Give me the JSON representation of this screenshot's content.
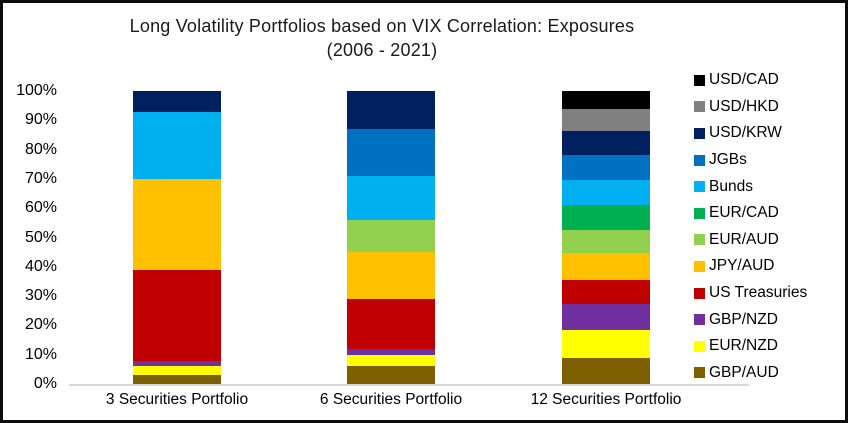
{
  "chart": {
    "title": "Long Volatility Portfolios based on VIX Correlation: Exposures",
    "subtitle": "(2006 - 2021)"
  },
  "chart_data": {
    "type": "bar",
    "stacked": true,
    "normalized_to_100_percent": true,
    "title": "Long Volatility Portfolios based on VIX Correlation: Exposures",
    "subtitle": "(2006 - 2021)",
    "xlabel": "",
    "ylabel": "",
    "ylim": [
      0,
      100
    ],
    "ytick_step": 10,
    "ytick_labels": [
      "0%",
      "10%",
      "20%",
      "30%",
      "40%",
      "50%",
      "60%",
      "70%",
      "80%",
      "90%",
      "100%"
    ],
    "grid": false,
    "legend_position": "right",
    "categories": [
      "3 Securities Portfolio",
      "6 Securities Portfolio",
      "12 Securities Portfolio"
    ],
    "series": [
      {
        "name": "USD/CAD",
        "color": "#000000",
        "values": [
          0,
          0,
          6.3
        ]
      },
      {
        "name": "USD/HKD",
        "color": "#808080",
        "values": [
          0,
          0,
          7.4
        ]
      },
      {
        "name": "USD/KRW",
        "color": "#002060",
        "values": [
          7,
          13,
          8.3
        ]
      },
      {
        "name": "JGBs",
        "color": "#0070C0",
        "values": [
          0,
          16,
          8.2
        ]
      },
      {
        "name": "Bunds",
        "color": "#00B0F0",
        "values": [
          23,
          15,
          8.6
        ]
      },
      {
        "name": "EUR/CAD",
        "color": "#00B050",
        "values": [
          0,
          0,
          8.6
        ]
      },
      {
        "name": "EUR/AUD",
        "color": "#92D050",
        "values": [
          0,
          11,
          7.8
        ]
      },
      {
        "name": "JPY/AUD",
        "color": "#FFC000",
        "values": [
          31,
          16,
          9.4
        ]
      },
      {
        "name": "US Treasuries",
        "color": "#C00000",
        "values": [
          31,
          17,
          8.2
        ]
      },
      {
        "name": "GBP/NZD",
        "color": "#7030A0",
        "values": [
          2,
          2,
          8.9
        ]
      },
      {
        "name": "EUR/NZD",
        "color": "#FFFF00",
        "values": [
          3,
          4,
          9.4
        ]
      },
      {
        "name": "GBP/AUD",
        "color": "#7F6000",
        "values": [
          3,
          6,
          8.9
        ]
      }
    ],
    "stack_order_bottom_to_top": [
      "GBP/AUD",
      "EUR/NZD",
      "GBP/NZD",
      "US Treasuries",
      "JPY/AUD",
      "EUR/AUD",
      "EUR/CAD",
      "Bunds",
      "JGBs",
      "USD/KRW",
      "USD/HKD",
      "USD/CAD"
    ]
  }
}
